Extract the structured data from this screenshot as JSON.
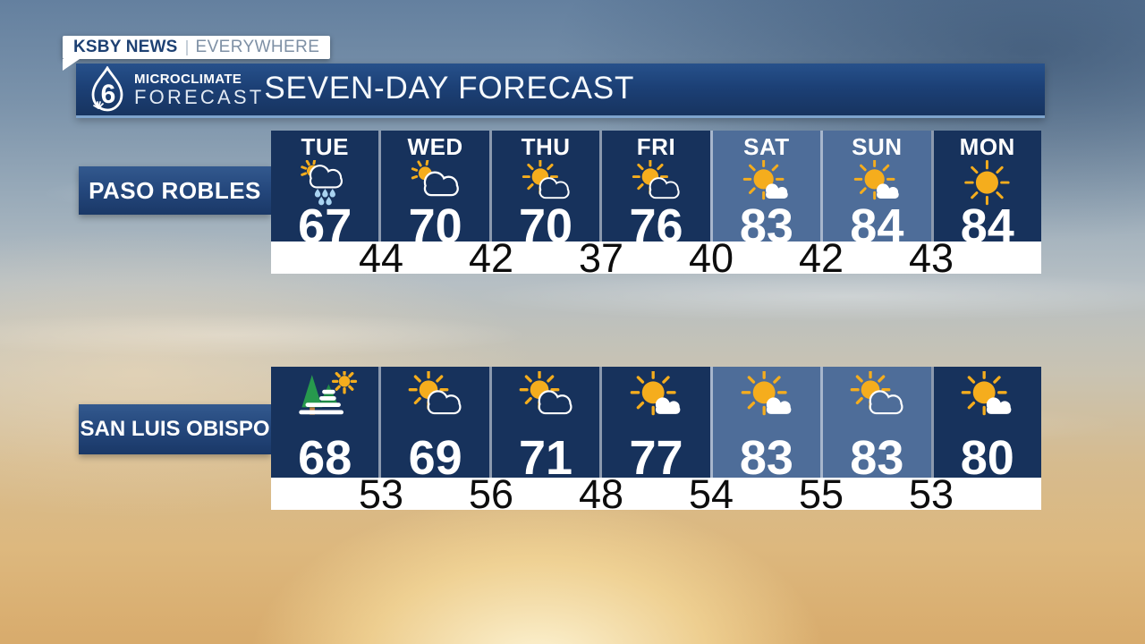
{
  "station_badge": {
    "primary": "KSBY NEWS",
    "secondary": "EVERYWHERE"
  },
  "header": {
    "logo_number": "6",
    "logo_line1": "MICROCLIMATE",
    "logo_line2": "FORECAST",
    "title": "SEVEN-DAY FORECAST"
  },
  "chart_data": {
    "type": "table",
    "title": "SEVEN-DAY FORECAST",
    "columns": [
      "TUE",
      "WED",
      "THU",
      "FRI",
      "SAT",
      "SUN",
      "MON"
    ],
    "weekend_columns": [
      "SAT",
      "SUN"
    ],
    "rows": [
      {
        "location": "PASO ROBLES",
        "icons": [
          "rain-sun-cloud",
          "sun-peek-cloud",
          "sun-cloud-outline",
          "sun-cloud-outline",
          "sun-cloud-filled",
          "sun-cloud-filled",
          "sunny"
        ],
        "highs": [
          67,
          70,
          70,
          76,
          83,
          84,
          84
        ],
        "overnight_lows": [
          44,
          42,
          37,
          40,
          42,
          43
        ]
      },
      {
        "location": "SAN LUIS OBISPO",
        "icons": [
          "fog-trees-sun",
          "sun-cloud-outline",
          "sun-cloud-outline",
          "sun-cloud-filled",
          "sun-cloud-filled",
          "sun-cloud-outline",
          "sun-cloud-filled"
        ],
        "highs": [
          68,
          69,
          71,
          77,
          83,
          83,
          80
        ],
        "overnight_lows": [
          53,
          56,
          48,
          54,
          55,
          53
        ]
      }
    ]
  },
  "colors": {
    "cell_navy": "#17325c",
    "cell_weekend": "#4e6d99",
    "sun_yellow": "#f5ad1d",
    "rain_blue": "#a9d3f0",
    "tree_green": "#27994d",
    "tree_green_dark": "#1f8a46",
    "trunk_brown": "#b97a3c",
    "low_strip": "#ffffff",
    "low_text": "#0d0d0d",
    "header_bar": "#1c4076",
    "divider": "rgba(255,255,255,0.5)"
  }
}
